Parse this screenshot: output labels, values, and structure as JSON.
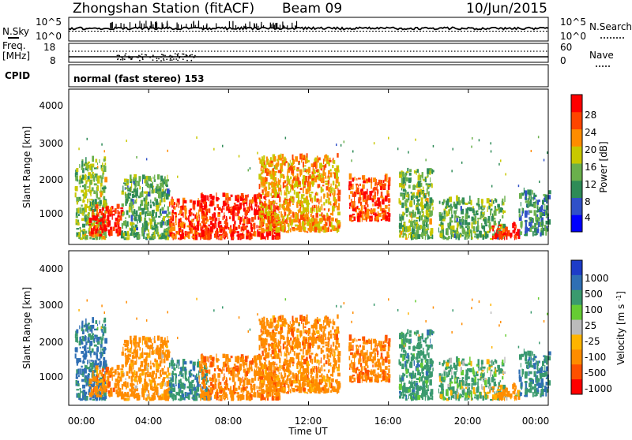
{
  "header": {
    "station": "Zhongshan Station (fitACF)",
    "beam": "Beam 09",
    "date": "10/Jun/2015"
  },
  "sidepanel": {
    "nsky": "N.Sky",
    "nsearch": "N.Search",
    "freq": "Freq.",
    "freq_unit": "[MHz]",
    "nave": "Nave",
    "cpid": "CPID",
    "cpid_value": "normal (fast stereo) 153",
    "nsky_ticks": [
      "10^5",
      "10^0"
    ],
    "nsearch_ticks": [
      "10^5",
      "10^0"
    ],
    "freq_ticks": [
      "18",
      "8"
    ],
    "nave_ticks": [
      "60",
      "0"
    ]
  },
  "axes": {
    "ylabel": "Slant Range [km]",
    "xlabel": "Time UT",
    "y_ticks": [
      "4000",
      "3000",
      "2000",
      "1000"
    ],
    "x_ticks": [
      "00:00",
      "04:00",
      "08:00",
      "12:00",
      "16:00",
      "20:00",
      "00:00"
    ]
  },
  "power_scale": {
    "label": "Power [dB]",
    "ticks": [
      "28",
      "24",
      "20",
      "16",
      "12",
      "8",
      "4"
    ],
    "colors": [
      "#0000ff",
      "#3050c8",
      "#2e8b57",
      "#6ab04c",
      "#c8c800",
      "#ff8c00",
      "#ff4500",
      "#ff0000"
    ]
  },
  "velocity_scale": {
    "label": "Velocity [m s^-1]",
    "ticks": [
      "1000",
      "500",
      "100",
      "25",
      "-25",
      "-100",
      "-500",
      "-1000"
    ],
    "colors": [
      "#1e3cc8",
      "#2f6fb4",
      "#3a9a6e",
      "#66cc33",
      "#bbbbbb",
      "#ffb400",
      "#ff8c00",
      "#ff5000",
      "#ff0000"
    ]
  },
  "chart_data": {
    "type": "heatmap",
    "x_range": [
      "00:00",
      "24:00"
    ],
    "y_range": [
      180,
      4500
    ],
    "y_unit": "km",
    "power_db_range": [
      0,
      30
    ],
    "velocity_range": [
      -1000,
      1000
    ],
    "scatter_blobs": [
      {
        "t0": 0.3,
        "t1": 1.8,
        "r0": 300,
        "r1": 2500,
        "power": 14,
        "velocity": 600
      },
      {
        "t0": 1.0,
        "t1": 2.6,
        "r0": 400,
        "r1": 1200,
        "power": 27,
        "velocity": -300
      },
      {
        "t0": 2.6,
        "t1": 5.0,
        "r0": 300,
        "r1": 2000,
        "power": 12,
        "velocity": -250
      },
      {
        "t0": 5.0,
        "t1": 7.0,
        "r0": 300,
        "r1": 1400,
        "power": 24,
        "velocity": 400
      },
      {
        "t0": 6.5,
        "t1": 10.5,
        "r0": 300,
        "r1": 1500,
        "power": 27,
        "velocity": -350
      },
      {
        "t0": 9.5,
        "t1": 13.5,
        "r0": 500,
        "r1": 2600,
        "power": 20,
        "velocity": -300
      },
      {
        "t0": 14.0,
        "t1": 16.0,
        "r0": 800,
        "r1": 2000,
        "power": 24,
        "velocity": -400
      },
      {
        "t0": 16.5,
        "t1": 18.2,
        "r0": 300,
        "r1": 2200,
        "power": 14,
        "velocity": 300
      },
      {
        "t0": 18.5,
        "t1": 21.8,
        "r0": 300,
        "r1": 1400,
        "power": 12,
        "velocity": 150
      },
      {
        "t0": 21.0,
        "t1": 22.5,
        "r0": 300,
        "r1": 700,
        "power": 27,
        "velocity": -200
      },
      {
        "t0": 22.5,
        "t1": 24.0,
        "r0": 400,
        "r1": 1600,
        "power": 10,
        "velocity": 400
      }
    ]
  }
}
